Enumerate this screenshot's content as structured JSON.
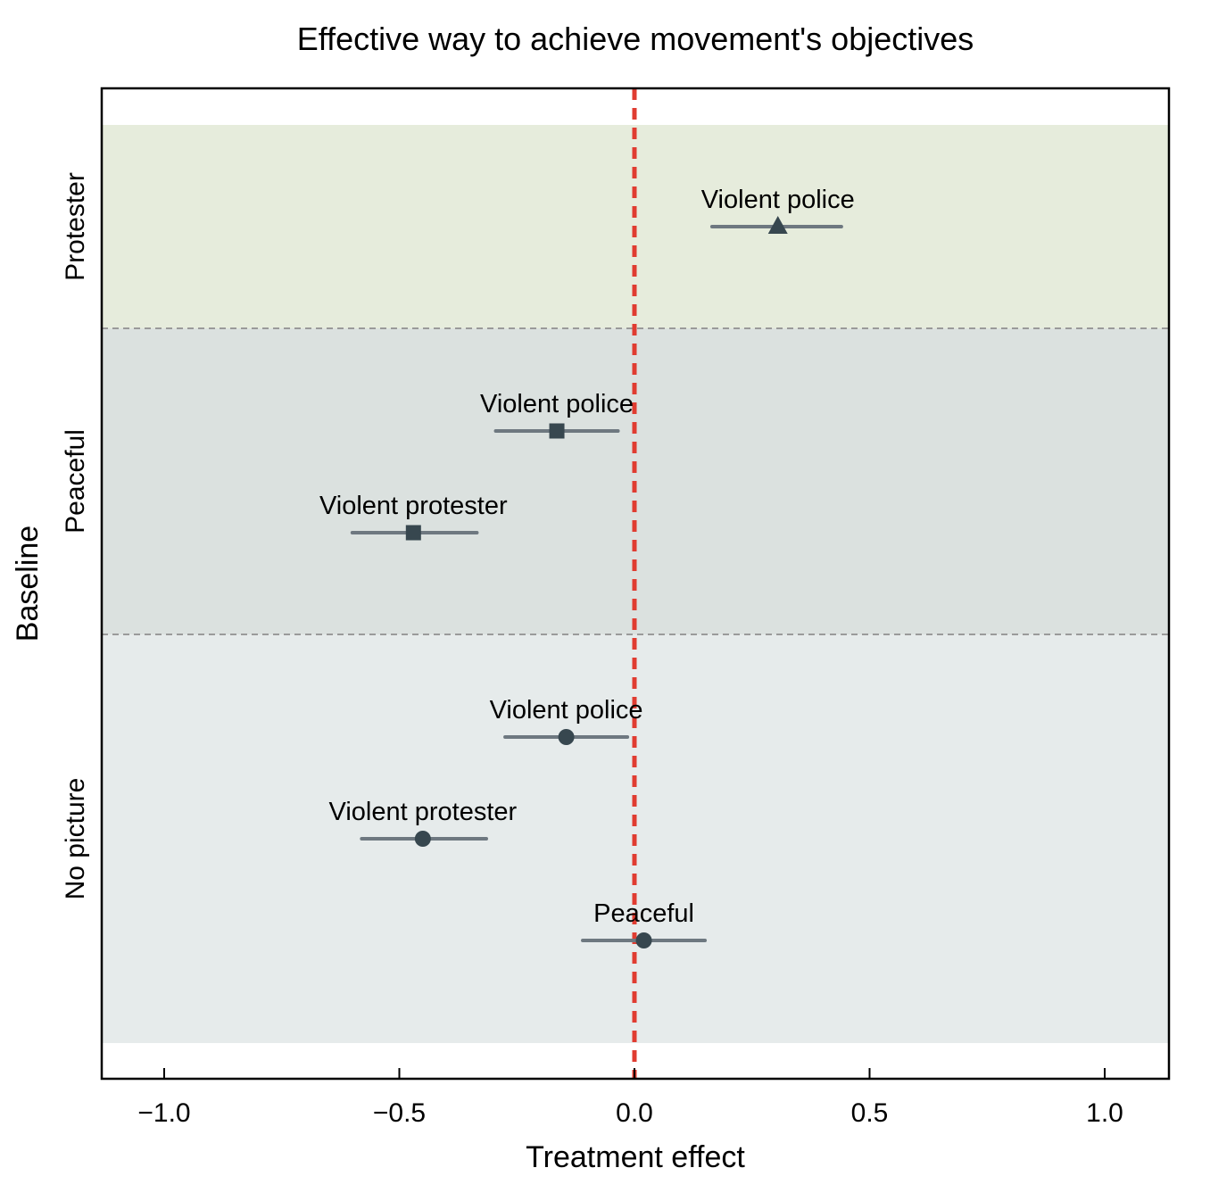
{
  "chart_data": {
    "type": "scatter",
    "title": "Effective way to achieve movement's objectives",
    "xlabel": "Treatment effect",
    "ylabel": "Baseline",
    "xlim": [
      -1.13,
      1.13
    ],
    "x_ticks": [
      {
        "value": -1.0,
        "label": "−1.0"
      },
      {
        "value": -0.5,
        "label": "−0.5"
      },
      {
        "value": 0.0,
        "label": "0.0"
      },
      {
        "value": 0.5,
        "label": "0.5"
      },
      {
        "value": 1.0,
        "label": "1.0"
      }
    ],
    "reference_line": {
      "x": 0.0,
      "color": "#e03c31"
    },
    "grid": false,
    "groups": [
      {
        "name": "Protester",
        "band_color": "#e6ecdc",
        "marker": "triangle",
        "points": [
          {
            "label": "Violent police",
            "estimate": 0.305,
            "ci_low": 0.165,
            "ci_high": 0.44
          }
        ]
      },
      {
        "name": "Peaceful",
        "band_color": "#dbe1df",
        "marker": "square",
        "points": [
          {
            "label": "Violent police",
            "estimate": -0.165,
            "ci_low": -0.295,
            "ci_high": -0.035
          },
          {
            "label": "Violent protester",
            "estimate": -0.47,
            "ci_low": -0.6,
            "ci_high": -0.335
          }
        ]
      },
      {
        "name": "No picture",
        "band_color": "#e6ebeb",
        "marker": "circle",
        "points": [
          {
            "label": "Violent police",
            "estimate": -0.145,
            "ci_low": -0.275,
            "ci_high": -0.015
          },
          {
            "label": "Violent protester",
            "estimate": -0.45,
            "ci_low": -0.58,
            "ci_high": -0.315
          },
          {
            "label": "Peaceful",
            "estimate": 0.02,
            "ci_low": -0.11,
            "ci_high": 0.15
          }
        ]
      }
    ],
    "colors": {
      "ci_line": "#6e7880",
      "marker": "#37474f",
      "separator": "#9a9a9a"
    }
  }
}
